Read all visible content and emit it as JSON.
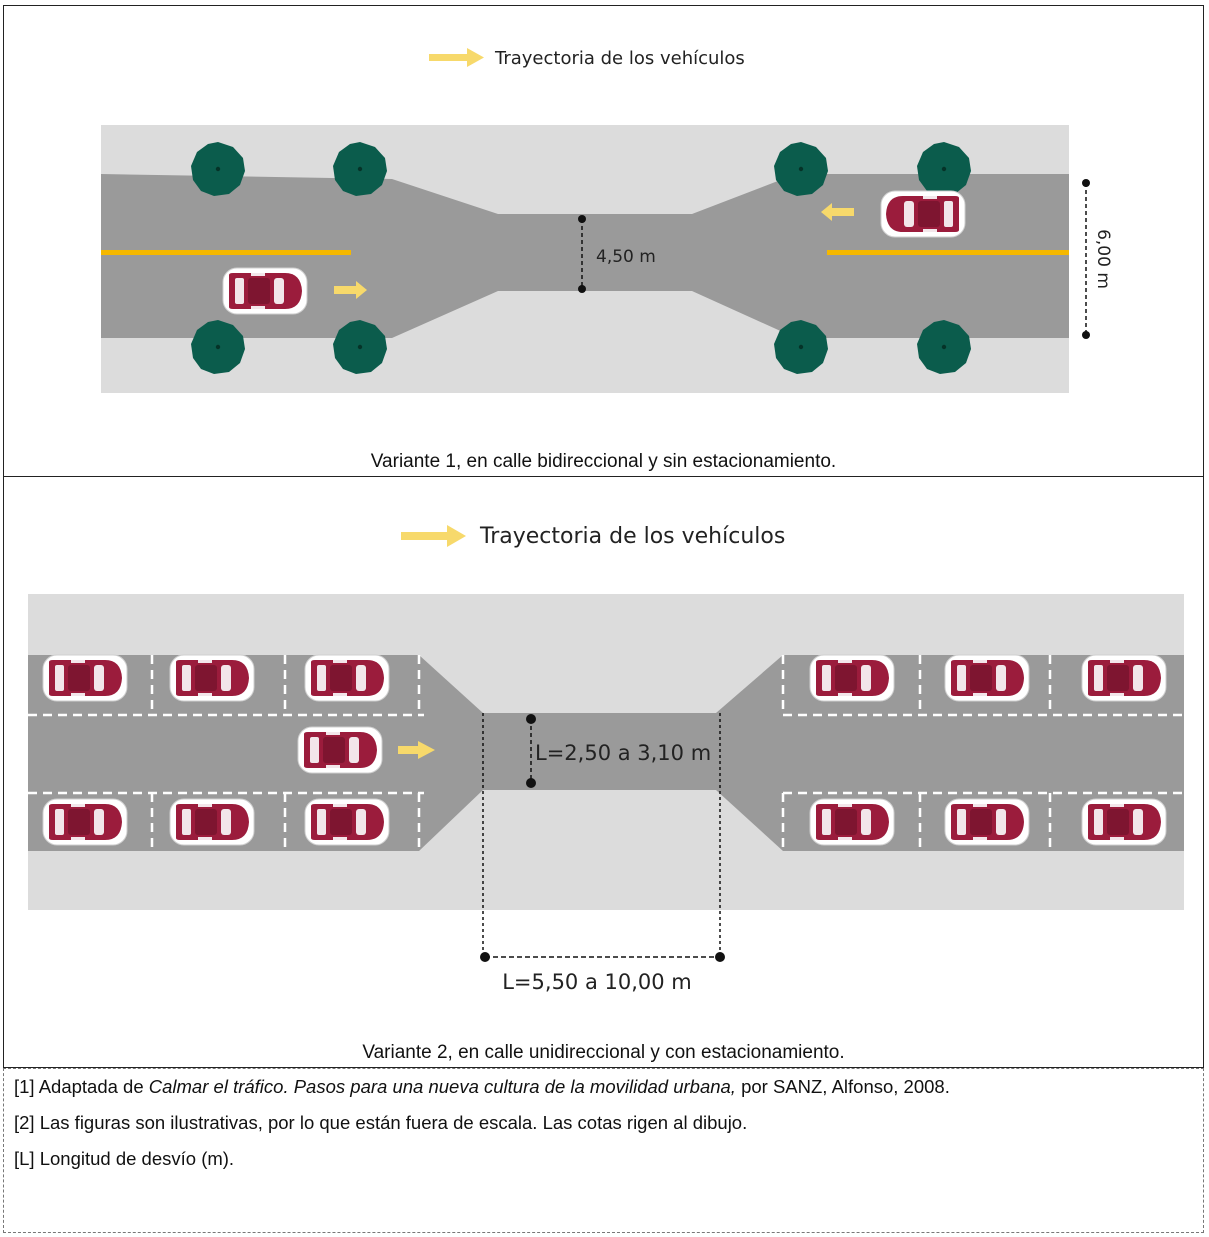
{
  "colors": {
    "road": "#9a9a9a",
    "sidewalk": "#dcdcdc",
    "lane_line": "#f5b800",
    "tree": "#0b5c4c",
    "car": "#9b1c3c",
    "arrow": "#f7d96b"
  },
  "variant1": {
    "legend": "Trayectoria de los vehículos",
    "dim_width": "4,50 m",
    "dim_total": "6,00 m",
    "caption": "Variante 1, en calle bidireccional y sin estacionamiento."
  },
  "variant2": {
    "legend": "Trayectoria de los vehículos",
    "dim_width": "L=2,50 a 3,10 m",
    "dim_length": "L=5,50 a 10,00 m",
    "caption": "Variante 2, en calle unidireccional y con estacionamiento."
  },
  "notes": {
    "n1_prefix": "[1] Adaptada de ",
    "n1_title": "Calmar el tráfico. Pasos para una nueva cultura de la movilidad urbana,",
    "n1_suffix": " por SANZ, Alfonso, 2008.",
    "n2": "[2] Las figuras son ilustrativas, por lo que están fuera de escala. Las cotas rigen al dibujo.",
    "n3": "[L] Longitud de desvío (m)."
  }
}
